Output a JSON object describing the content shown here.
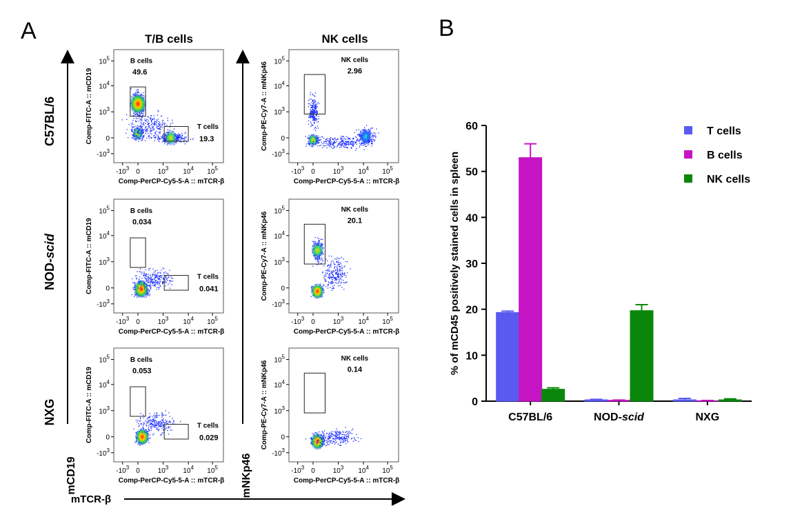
{
  "panel_a": {
    "label": "A",
    "col_titles": [
      "T/B cells",
      "NK cells"
    ],
    "row_labels": [
      {
        "pre": "C57BL/6",
        "ital": ""
      },
      {
        "pre": "NOD-",
        "ital": "scid"
      },
      {
        "pre": "NXG",
        "ital": ""
      }
    ],
    "y_axis_labels": [
      "mCD19",
      "mNKp46"
    ],
    "x_axis_label": "mTCR-β",
    "plot_ylabels": [
      "Comp-FITC-A :: mCD19",
      "Comp-PE-Cy7-A :: mNKp46"
    ],
    "plot_xlabel": "Comp-PerCP-Cy5-5-A :: mTCR-β",
    "x_ticks": [
      {
        "b": "-10",
        "e": "3"
      },
      {
        "b": "0",
        "e": ""
      },
      {
        "b": "10",
        "e": "3"
      },
      {
        "b": "10",
        "e": "4"
      },
      {
        "b": "10",
        "e": "5"
      }
    ],
    "y_ticks": [
      {
        "b": "-10",
        "e": "3"
      },
      {
        "b": "0",
        "e": ""
      },
      {
        "b": "10",
        "e": "3"
      },
      {
        "b": "10",
        "e": "4"
      },
      {
        "b": "10",
        "e": "5"
      }
    ],
    "gates": [
      [
        {
          "b_name": "B cells",
          "b_val": "49.6",
          "t_name": "T cells",
          "t_val": "19.3"
        },
        {
          "n_name": "NK cells",
          "n_val": "2.96"
        }
      ],
      [
        {
          "b_name": "B cells",
          "b_val": "0.034",
          "t_name": "T cells",
          "t_val": "0.041"
        },
        {
          "n_name": "NK cells",
          "n_val": "20.1"
        }
      ],
      [
        {
          "b_name": "B cells",
          "b_val": "0.053",
          "t_name": "T cells",
          "t_val": "0.029"
        },
        {
          "n_name": "NK cells",
          "n_val": "0.14"
        }
      ]
    ]
  },
  "panel_b": {
    "label": "B"
  },
  "chart_data": {
    "type": "bar",
    "title": "",
    "xlabel": "",
    "ylabel": "% of mCD45 positively stained cells in spleen",
    "ylim": [
      0,
      60
    ],
    "yticks": [
      0,
      10,
      20,
      30,
      40,
      50,
      60
    ],
    "categories": [
      {
        "pre": "C57BL/6",
        "ital": ""
      },
      {
        "pre": "NOD-",
        "ital": "scid"
      },
      {
        "pre": "NXG",
        "ital": ""
      }
    ],
    "series": [
      {
        "name": "T cells",
        "color": "#5a5af0",
        "values": [
          19.3,
          0.3,
          0.3
        ],
        "errors": [
          0.3,
          0.1,
          0.3
        ]
      },
      {
        "name": "B cells",
        "color": "#c414c4",
        "values": [
          53.0,
          0.2,
          0.1
        ],
        "errors": [
          3.0,
          0.05,
          0.05
        ]
      },
      {
        "name": "NK cells",
        "color": "#0a870a",
        "values": [
          2.6,
          19.7,
          0.3
        ],
        "errors": [
          0.3,
          1.3,
          0.2
        ]
      }
    ],
    "legend_position": "top-right",
    "grid": false
  }
}
